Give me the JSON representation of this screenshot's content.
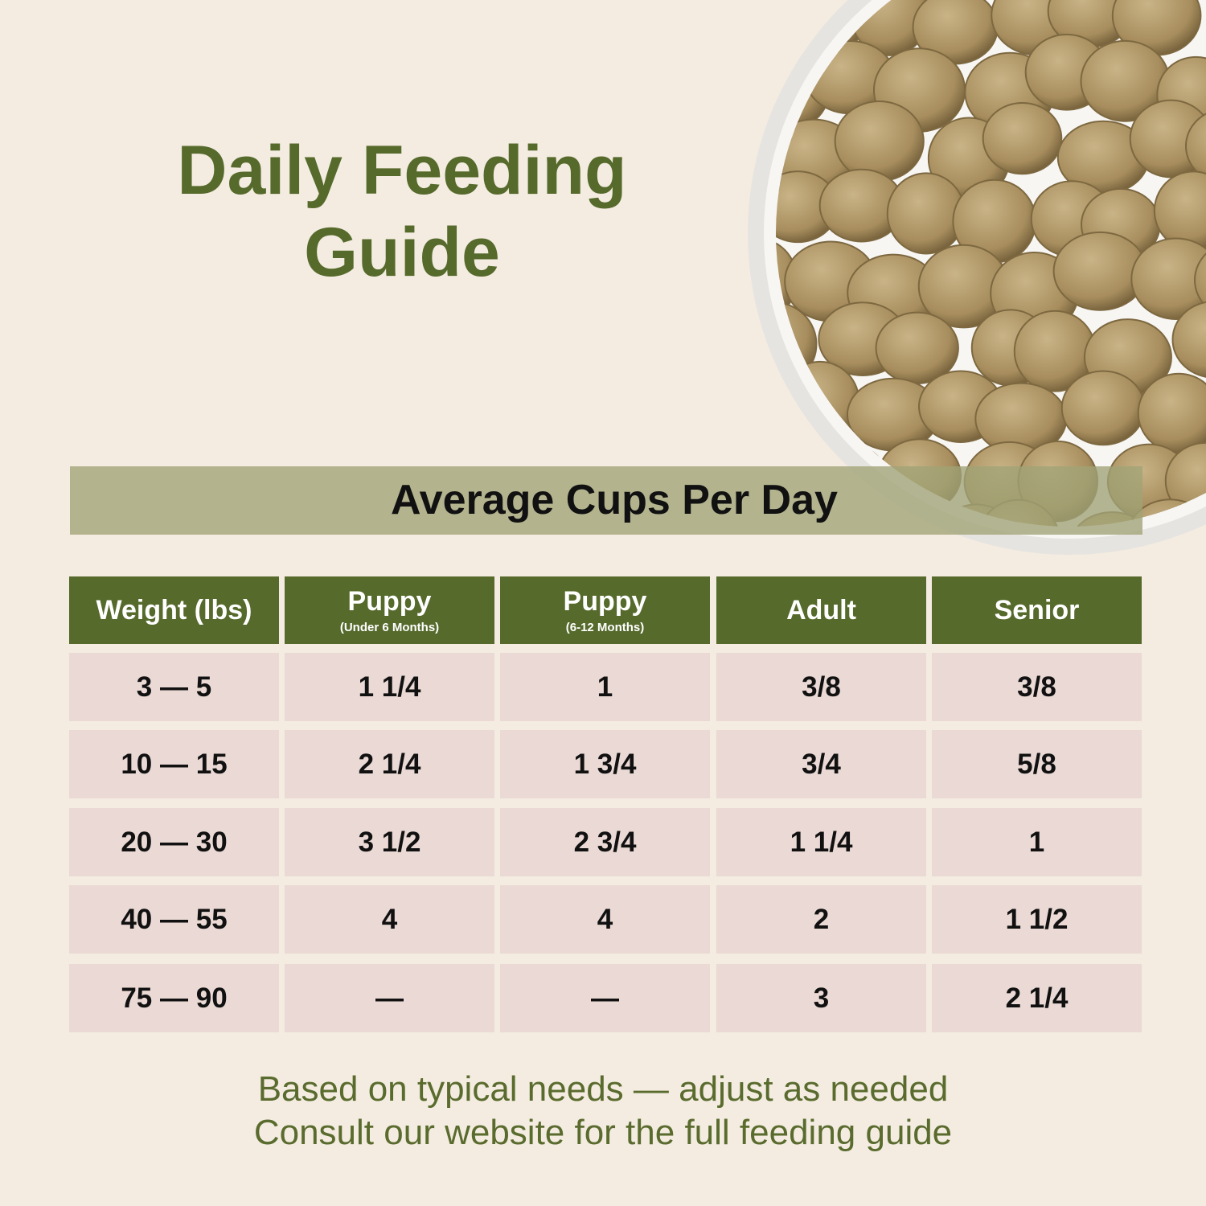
{
  "header": {
    "title": [
      "Daily Feeding",
      "Guide"
    ],
    "subtitle": "Average Cups Per Day"
  },
  "table": {
    "columns": [
      {
        "label": "Weight (lbs)"
      },
      {
        "label": "Puppy",
        "note": "(Under 6 Months)"
      },
      {
        "label": "Puppy",
        "note": "(6-12 Months)"
      },
      {
        "label": "Adult"
      },
      {
        "label": "Senior"
      }
    ],
    "rows": [
      [
        "3 — 5",
        "1 1/4",
        "1",
        "3/8",
        "3/8"
      ],
      [
        "10 — 15",
        "2 1/4",
        "1 3/4",
        "3/4",
        "5/8"
      ],
      [
        "20 — 30",
        "3 1/2",
        "2 3/4",
        "1 1/4",
        "1"
      ],
      [
        "40 — 55",
        "4",
        "4",
        "2",
        "1 1/2"
      ],
      [
        "75 — 90",
        "—",
        "—",
        "3",
        "2 1/4"
      ]
    ]
  },
  "footer": [
    "Based on typical needs — adjust as needed",
    "Consult our website for the full feeding guide"
  ]
}
